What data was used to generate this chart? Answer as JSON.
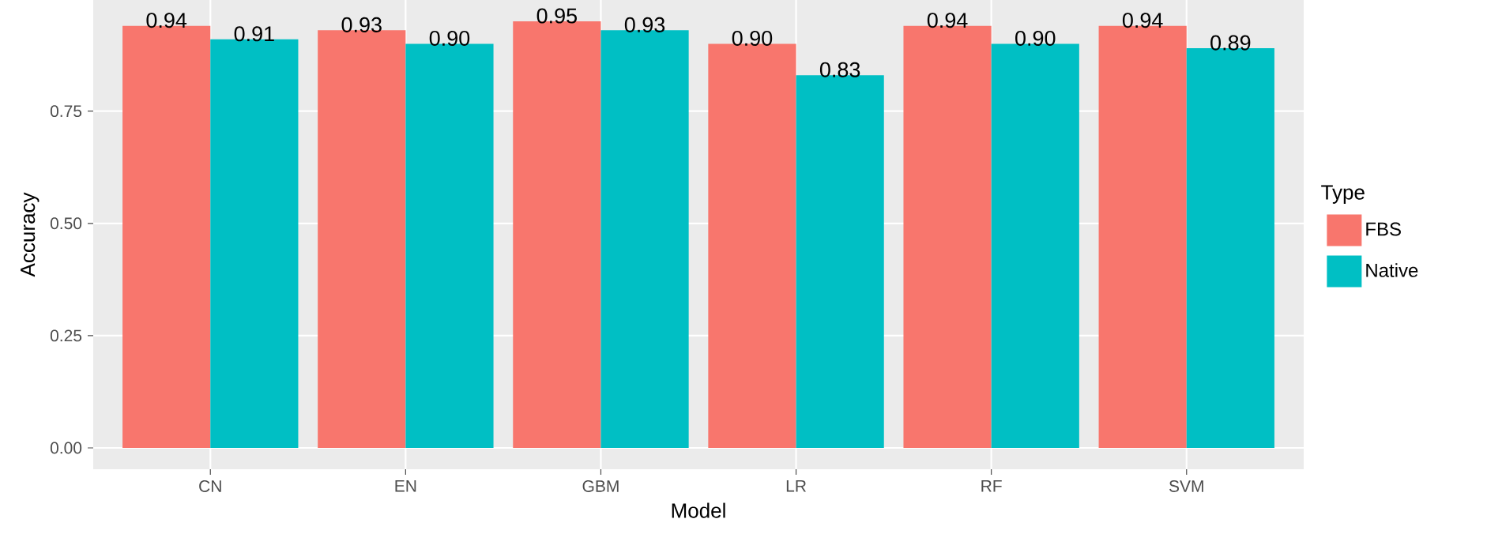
{
  "chart_data": {
    "type": "bar",
    "xlabel": "Model",
    "ylabel": "Accuracy",
    "legend_title": "Type",
    "categories": [
      "CN",
      "EN",
      "GBM",
      "LR",
      "RF",
      "SVM"
    ],
    "series": [
      {
        "name": "FBS",
        "color": "#f8766d",
        "values": [
          0.94,
          0.93,
          0.95,
          0.9,
          0.94,
          0.94
        ],
        "value_labels": [
          "0.94",
          "0.93",
          "0.95",
          "0.90",
          "0.94",
          "0.94"
        ]
      },
      {
        "name": "Native",
        "color": "#00bfc4",
        "values": [
          0.91,
          0.9,
          0.93,
          0.83,
          0.9,
          0.89
        ],
        "value_labels": [
          "0.91",
          "0.90",
          "0.93",
          "0.83",
          "0.90",
          "0.89"
        ]
      }
    ],
    "ylim": [
      -0.0475,
      0.9975
    ],
    "yticks": [
      {
        "value": 0,
        "label": "0.00"
      },
      0.25,
      {
        "value": 0.5,
        "label": "0.50"
      },
      0.75
    ],
    "grid": true,
    "legend": "right"
  }
}
